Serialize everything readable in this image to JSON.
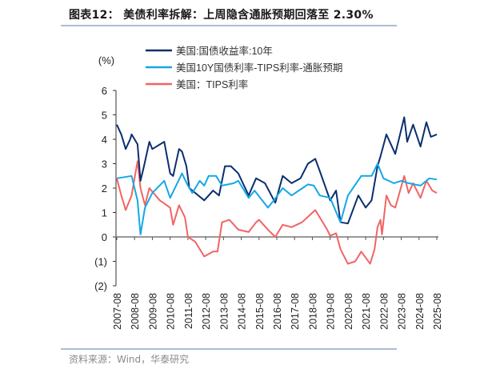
{
  "title": "图表12：  美债利率拆解：上周隐含通胀预期回落至 2.30%",
  "source": "资料来源：Wind，华泰研究",
  "chart_data": {
    "type": "line",
    "title": "",
    "ylabel": "(%)",
    "ylim": [
      -2,
      6
    ],
    "yticks": [
      6,
      5,
      4,
      3,
      2,
      1,
      0,
      -1,
      -2
    ],
    "ytick_labels": [
      "6",
      "5",
      "4",
      "3",
      "2",
      "1",
      "0",
      "(1)",
      "(2)"
    ],
    "xlim": [
      "2007-08",
      "2025-08"
    ],
    "xtick_labels": [
      "2007-08",
      "2008-08",
      "2009-08",
      "2010-08",
      "2011-08",
      "2012-08",
      "2013-08",
      "2014-08",
      "2015-08",
      "2016-08",
      "2017-08",
      "2018-08",
      "2019-08",
      "2020-08",
      "2021-08",
      "2022-08",
      "2023-08",
      "2024-08",
      "2025-08"
    ],
    "grid": false,
    "legend_position": "top",
    "series": [
      {
        "name": "美国:国债收益率:10年",
        "color": "#0b2f6e",
        "points": [
          [
            "2007-08",
            4.6
          ],
          [
            "2007-11",
            4.2
          ],
          [
            "2008-02",
            3.6
          ],
          [
            "2008-05",
            4.0
          ],
          [
            "2008-06",
            4.2
          ],
          [
            "2008-10",
            3.8
          ],
          [
            "2008-12",
            2.3
          ],
          [
            "2009-02",
            2.8
          ],
          [
            "2009-06",
            3.9
          ],
          [
            "2009-08",
            3.6
          ],
          [
            "2010-04",
            3.9
          ],
          [
            "2010-08",
            2.6
          ],
          [
            "2010-10",
            2.5
          ],
          [
            "2011-02",
            3.6
          ],
          [
            "2011-04",
            3.5
          ],
          [
            "2011-07",
            2.9
          ],
          [
            "2011-09",
            2.0
          ],
          [
            "2012-07",
            1.5
          ],
          [
            "2013-01",
            1.9
          ],
          [
            "2013-05",
            1.7
          ],
          [
            "2013-09",
            2.9
          ],
          [
            "2014-01",
            2.9
          ],
          [
            "2014-06",
            2.6
          ],
          [
            "2015-01",
            1.7
          ],
          [
            "2015-06",
            2.4
          ],
          [
            "2015-12",
            2.2
          ],
          [
            "2016-07",
            1.4
          ],
          [
            "2016-12",
            2.5
          ],
          [
            "2017-06",
            2.2
          ],
          [
            "2017-12",
            2.4
          ],
          [
            "2018-05",
            3.0
          ],
          [
            "2018-10",
            3.2
          ],
          [
            "2019-01",
            2.7
          ],
          [
            "2019-08",
            1.5
          ],
          [
            "2019-12",
            1.9
          ],
          [
            "2020-03",
            0.6
          ],
          [
            "2020-08",
            0.55
          ],
          [
            "2021-03",
            1.7
          ],
          [
            "2021-08",
            1.2
          ],
          [
            "2021-12",
            1.5
          ],
          [
            "2022-04",
            2.9
          ],
          [
            "2022-06",
            3.3
          ],
          [
            "2022-10",
            4.2
          ],
          [
            "2023-04",
            3.4
          ],
          [
            "2023-10",
            4.9
          ],
          [
            "2023-12",
            3.9
          ],
          [
            "2024-04",
            4.6
          ],
          [
            "2024-09",
            3.7
          ],
          [
            "2025-01",
            4.7
          ],
          [
            "2025-04",
            4.1
          ],
          [
            "2025-08",
            4.2
          ]
        ]
      },
      {
        "name": "美国10Y国债利率-TIPS利率-通胀预期",
        "color": "#14a8e6",
        "points": [
          [
            "2007-08",
            2.4
          ],
          [
            "2008-06",
            2.5
          ],
          [
            "2008-10",
            1.5
          ],
          [
            "2008-12",
            0.1
          ],
          [
            "2009-03",
            1.2
          ],
          [
            "2009-08",
            1.8
          ],
          [
            "2010-04",
            2.3
          ],
          [
            "2010-08",
            1.6
          ],
          [
            "2011-04",
            2.6
          ],
          [
            "2011-08",
            2.1
          ],
          [
            "2011-11",
            1.8
          ],
          [
            "2012-04",
            2.3
          ],
          [
            "2012-07",
            2.1
          ],
          [
            "2012-10",
            2.5
          ],
          [
            "2013-03",
            2.5
          ],
          [
            "2013-07",
            2.1
          ],
          [
            "2014-03",
            2.2
          ],
          [
            "2014-06",
            2.3
          ],
          [
            "2015-01",
            1.6
          ],
          [
            "2015-05",
            1.9
          ],
          [
            "2016-02",
            1.2
          ],
          [
            "2016-06",
            1.5
          ],
          [
            "2016-12",
            2.0
          ],
          [
            "2017-06",
            1.7
          ],
          [
            "2018-05",
            2.15
          ],
          [
            "2018-09",
            2.1
          ],
          [
            "2019-01",
            1.7
          ],
          [
            "2019-08",
            1.6
          ],
          [
            "2020-03",
            0.6
          ],
          [
            "2020-08",
            1.7
          ],
          [
            "2021-05",
            2.5
          ],
          [
            "2021-12",
            2.5
          ],
          [
            "2022-04",
            3.0
          ],
          [
            "2022-08",
            2.4
          ],
          [
            "2023-03",
            2.2
          ],
          [
            "2023-08",
            2.3
          ],
          [
            "2024-01",
            2.2
          ],
          [
            "2024-09",
            2.1
          ],
          [
            "2025-03",
            2.4
          ],
          [
            "2025-08",
            2.35
          ]
        ]
      },
      {
        "name": "美国：TIPS利率",
        "color": "#f26464",
        "points": [
          [
            "2007-08",
            2.4
          ],
          [
            "2007-11",
            1.7
          ],
          [
            "2008-02",
            1.1
          ],
          [
            "2008-06",
            1.7
          ],
          [
            "2008-10",
            3.1
          ],
          [
            "2008-12",
            2.0
          ],
          [
            "2009-03",
            1.3
          ],
          [
            "2009-06",
            2.0
          ],
          [
            "2010-01",
            1.5
          ],
          [
            "2010-08",
            1.2
          ],
          [
            "2010-10",
            0.5
          ],
          [
            "2011-02",
            1.3
          ],
          [
            "2011-06",
            0.8
          ],
          [
            "2011-08",
            0.0
          ],
          [
            "2012-01",
            -0.2
          ],
          [
            "2012-07",
            -0.8
          ],
          [
            "2013-01",
            -0.6
          ],
          [
            "2013-04",
            -0.6
          ],
          [
            "2013-07",
            0.6
          ],
          [
            "2013-12",
            0.7
          ],
          [
            "2014-06",
            0.3
          ],
          [
            "2015-01",
            0.2
          ],
          [
            "2015-06",
            0.6
          ],
          [
            "2015-08",
            0.7
          ],
          [
            "2016-02",
            0.3
          ],
          [
            "2016-07",
            0.0
          ],
          [
            "2016-12",
            0.5
          ],
          [
            "2017-06",
            0.4
          ],
          [
            "2018-01",
            0.6
          ],
          [
            "2018-10",
            1.1
          ],
          [
            "2019-06",
            0.3
          ],
          [
            "2019-08",
            0.05
          ],
          [
            "2019-12",
            0.15
          ],
          [
            "2020-03",
            -0.5
          ],
          [
            "2020-08",
            -1.1
          ],
          [
            "2021-01",
            -1.0
          ],
          [
            "2021-05",
            -0.6
          ],
          [
            "2021-11",
            -1.1
          ],
          [
            "2022-02",
            -0.5
          ],
          [
            "2022-04",
            0.4
          ],
          [
            "2022-06",
            0.7
          ],
          [
            "2022-07",
            0.1
          ],
          [
            "2022-10",
            1.7
          ],
          [
            "2023-01",
            1.3
          ],
          [
            "2023-04",
            1.2
          ],
          [
            "2023-10",
            2.5
          ],
          [
            "2024-01",
            1.8
          ],
          [
            "2024-04",
            2.2
          ],
          [
            "2024-09",
            1.6
          ],
          [
            "2025-01",
            2.3
          ],
          [
            "2025-05",
            1.9
          ],
          [
            "2025-08",
            1.8
          ]
        ]
      }
    ]
  }
}
